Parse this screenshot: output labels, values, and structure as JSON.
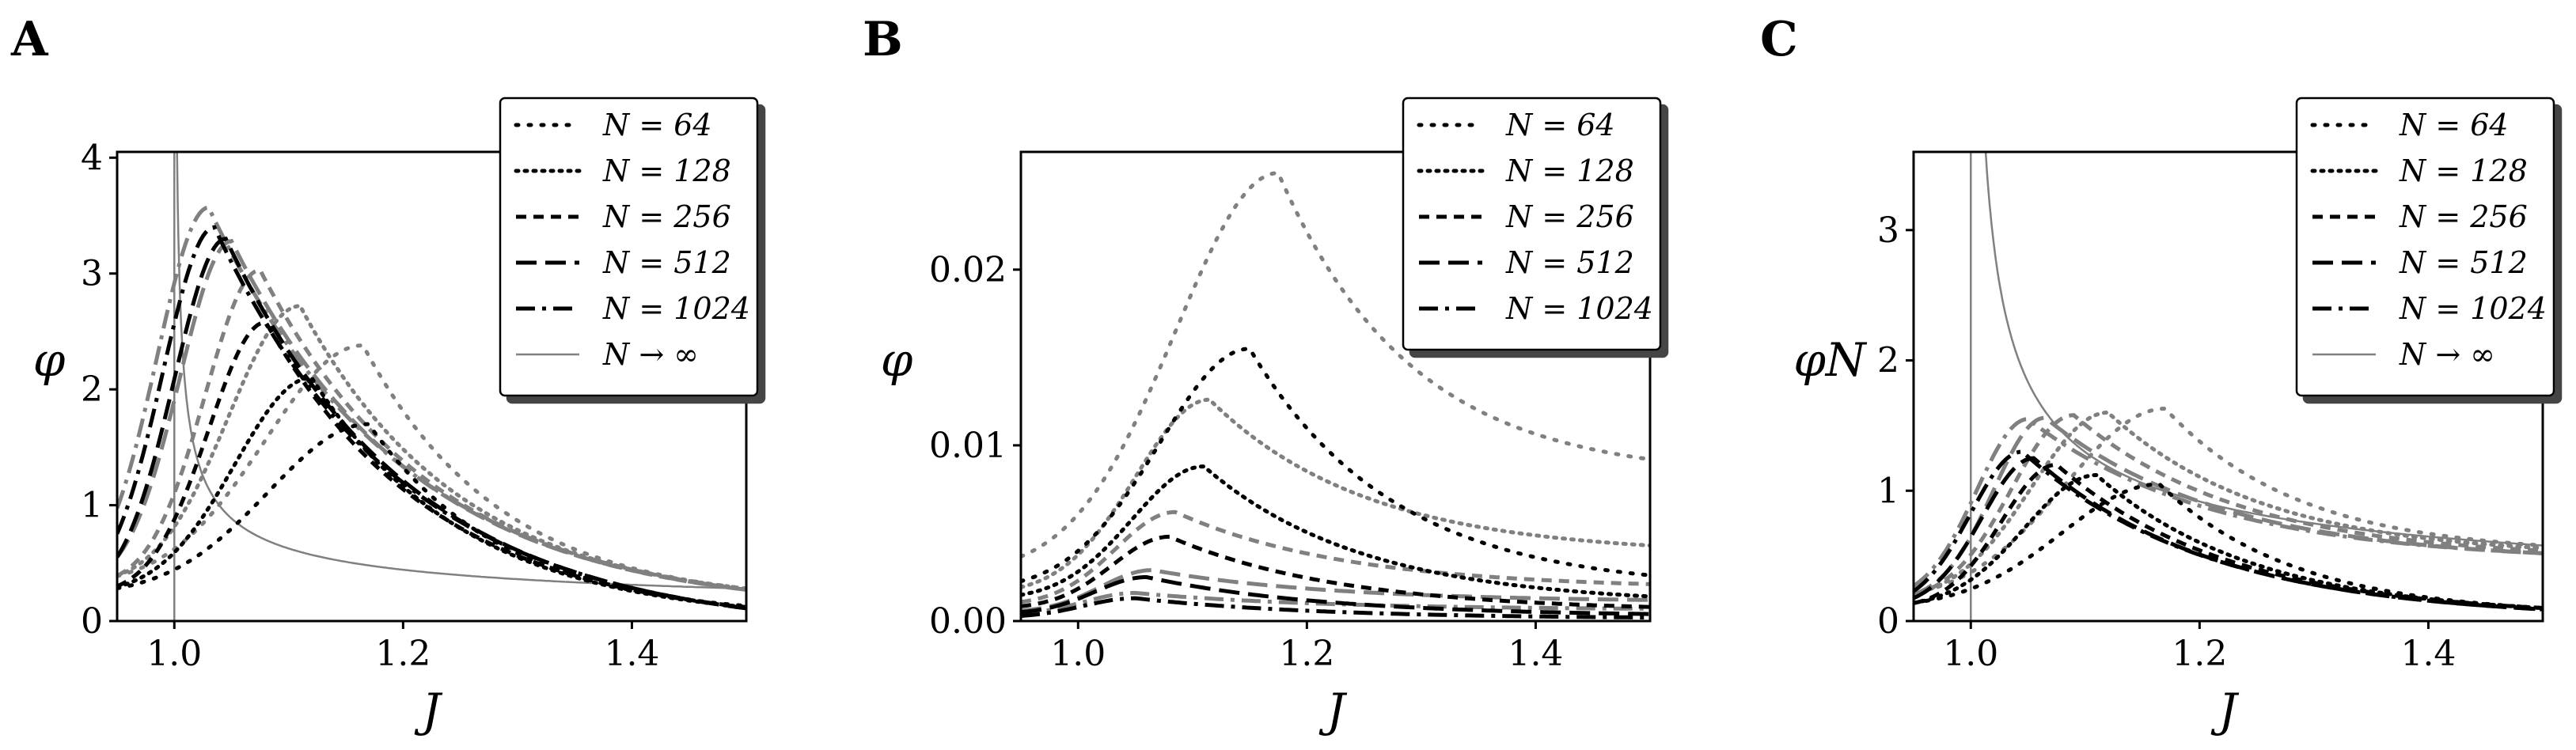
{
  "colors": {
    "black": "#000000",
    "gray": "#808080"
  },
  "legend_labels": [
    "N = 64",
    "N = 128",
    "N = 256",
    "N = 512",
    "N = 1024",
    "N → ∞"
  ],
  "chart_data": [
    {
      "panel": "A",
      "type": "line",
      "xlabel": "J",
      "ylabel": "φ",
      "xlim": [
        0.95,
        1.5
      ],
      "ylim": [
        0,
        4.05
      ],
      "xticks": [
        "1.0",
        "1.2",
        "1.4"
      ],
      "yticks": [
        "0",
        "1",
        "2",
        "3",
        "4"
      ],
      "legend": [
        "N = 64",
        "N = 128",
        "N = 256",
        "N = 512",
        "N = 1024",
        "N → ∞"
      ],
      "legend_position": "top-right",
      "grid": false,
      "series": [
        {
          "name": "N = 64",
          "color": "gray",
          "style": "dot-sparse",
          "peak": [
            1.165,
            2.38
          ],
          "base": 0.3,
          "tail": 0.28
        },
        {
          "name": "N = 64",
          "color": "black",
          "style": "dot-sparse",
          "peak": [
            1.17,
            1.7
          ],
          "base": 0.22,
          "tail": 0.13
        },
        {
          "name": "N = 128",
          "color": "gray",
          "style": "dot-dense",
          "peak": [
            1.11,
            2.72
          ],
          "base": 0.3,
          "tail": 0.28
        },
        {
          "name": "N = 128",
          "color": "black",
          "style": "dot-dense",
          "peak": [
            1.12,
            2.1
          ],
          "base": 0.22,
          "tail": 0.12
        },
        {
          "name": "N = 256",
          "color": "gray",
          "style": "dash-short",
          "peak": [
            1.075,
            3.03
          ],
          "base": 0.3,
          "tail": 0.27
        },
        {
          "name": "N = 256",
          "color": "black",
          "style": "dash-short",
          "peak": [
            1.08,
            2.58
          ],
          "base": 0.22,
          "tail": 0.12
        },
        {
          "name": "N = 512",
          "color": "gray",
          "style": "dash-long",
          "peak": [
            1.05,
            3.28
          ],
          "base": 0.3,
          "tail": 0.27
        },
        {
          "name": "N = 512",
          "color": "black",
          "style": "dash-long",
          "peak": [
            1.045,
            3.3
          ],
          "base": 0.22,
          "tail": 0.11
        },
        {
          "name": "N = 1024",
          "color": "gray",
          "style": "dash-dot",
          "peak": [
            1.03,
            3.57
          ],
          "base": 0.3,
          "tail": 0.27
        },
        {
          "name": "N = 1024",
          "color": "black",
          "style": "dash-dot",
          "peak": [
            1.035,
            3.4
          ],
          "base": 0.22,
          "tail": 0.11
        }
      ],
      "limit_curve": {
        "name": "N → ∞",
        "color": "gray",
        "critical_x": 1.0,
        "tail": 0.28
      }
    },
    {
      "panel": "B",
      "type": "line",
      "xlabel": "J",
      "ylabel": "φ",
      "xlim": [
        0.95,
        1.5
      ],
      "ylim": [
        0,
        0.0267
      ],
      "xticks": [
        "1.0",
        "1.2",
        "1.4"
      ],
      "yticks": [
        "0.00",
        "0.01",
        "0.02"
      ],
      "legend": [
        "N = 64",
        "N = 128",
        "N = 256",
        "N = 512",
        "N = 1024"
      ],
      "legend_position": "top-right",
      "grid": false,
      "series": [
        {
          "name": "N = 64",
          "color": "gray",
          "style": "dot-sparse",
          "peak": [
            1.175,
            0.0255
          ],
          "base": 0.0027,
          "tail": 0.0092
        },
        {
          "name": "N = 64",
          "color": "black",
          "style": "dot-sparse",
          "peak": [
            1.15,
            0.0155
          ],
          "base": 0.0017,
          "tail": 0.0026
        },
        {
          "name": "N = 128",
          "color": "gray",
          "style": "dot-dense",
          "peak": [
            1.115,
            0.0126
          ],
          "base": 0.0015,
          "tail": 0.0043
        },
        {
          "name": "N = 128",
          "color": "black",
          "style": "dot-dense",
          "peak": [
            1.11,
            0.0088
          ],
          "base": 0.0012,
          "tail": 0.0014
        },
        {
          "name": "N = 256",
          "color": "gray",
          "style": "dash-short",
          "peak": [
            1.085,
            0.0062
          ],
          "base": 0.0009,
          "tail": 0.0021
        },
        {
          "name": "N = 256",
          "color": "black",
          "style": "dash-short",
          "peak": [
            1.08,
            0.0048
          ],
          "base": 0.0007,
          "tail": 0.0008
        },
        {
          "name": "N = 512",
          "color": "gray",
          "style": "dash-long",
          "peak": [
            1.065,
            0.0029
          ],
          "base": 0.0005,
          "tail": 0.0012
        },
        {
          "name": "N = 512",
          "color": "black",
          "style": "dash-long",
          "peak": [
            1.06,
            0.0025
          ],
          "base": 0.0004,
          "tail": 0.0004
        },
        {
          "name": "N = 1024",
          "color": "gray",
          "style": "dash-dot",
          "peak": [
            1.05,
            0.0016
          ],
          "base": 0.0003,
          "tail": 0.0007
        },
        {
          "name": "N = 1024",
          "color": "black",
          "style": "dash-dot",
          "peak": [
            1.05,
            0.0013
          ],
          "base": 0.0002,
          "tail": 0.0002
        }
      ]
    },
    {
      "panel": "C",
      "type": "line",
      "xlabel": "J",
      "ylabel": "φN",
      "xlim": [
        0.95,
        1.5
      ],
      "ylim": [
        0,
        3.6
      ],
      "xticks": [
        "1.0",
        "1.2",
        "1.4"
      ],
      "yticks": [
        "0",
        "1",
        "2",
        "3"
      ],
      "legend": [
        "N = 64",
        "N = 128",
        "N = 256",
        "N = 512",
        "N = 1024",
        "N → ∞"
      ],
      "legend_position": "top-right",
      "grid": false,
      "series": [
        {
          "name": "N = 64",
          "color": "gray",
          "style": "dot-sparse",
          "peak": [
            1.17,
            1.63
          ],
          "base": 0.15,
          "tail": 0.58
        },
        {
          "name": "N = 64",
          "color": "black",
          "style": "dot-sparse",
          "peak": [
            1.165,
            1.05
          ],
          "base": 0.1,
          "tail": 0.1
        },
        {
          "name": "N = 128",
          "color": "gray",
          "style": "dot-dense",
          "peak": [
            1.12,
            1.6
          ],
          "base": 0.15,
          "tail": 0.56
        },
        {
          "name": "N = 128",
          "color": "black",
          "style": "dot-dense",
          "peak": [
            1.11,
            1.12
          ],
          "base": 0.1,
          "tail": 0.1
        },
        {
          "name": "N = 256",
          "color": "gray",
          "style": "dash-short",
          "peak": [
            1.09,
            1.58
          ],
          "base": 0.15,
          "tail": 0.54
        },
        {
          "name": "N = 256",
          "color": "black",
          "style": "dash-short",
          "peak": [
            1.075,
            1.2
          ],
          "base": 0.1,
          "tail": 0.1
        },
        {
          "name": "N = 512",
          "color": "gray",
          "style": "dash-long",
          "peak": [
            1.065,
            1.56
          ],
          "base": 0.15,
          "tail": 0.52
        },
        {
          "name": "N = 512",
          "color": "black",
          "style": "dash-long",
          "peak": [
            1.055,
            1.25
          ],
          "base": 0.1,
          "tail": 0.09
        },
        {
          "name": "N = 1024",
          "color": "gray",
          "style": "dash-dot",
          "peak": [
            1.05,
            1.55
          ],
          "base": 0.15,
          "tail": 0.52
        },
        {
          "name": "N = 1024",
          "color": "black",
          "style": "dash-dot",
          "peak": [
            1.045,
            1.3
          ],
          "base": 0.1,
          "tail": 0.09
        }
      ],
      "limit_curve": {
        "name": "N → ∞",
        "color": "gray",
        "critical_x": 1.0,
        "tail": 0.58
      }
    }
  ]
}
